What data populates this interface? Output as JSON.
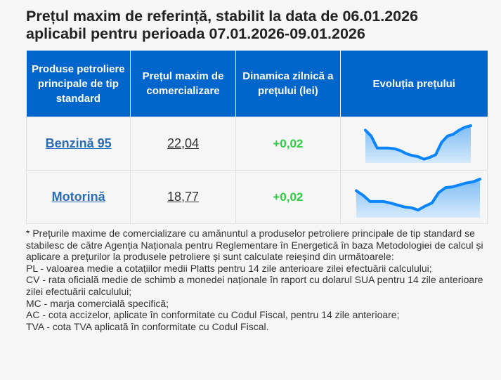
{
  "title_line1": "Prețul maxim de referință, stabilit la data de 06.01.2026",
  "title_line2": "aplicabil pentru perioada 07.01.2026-09.01.2026",
  "table": {
    "headers": [
      "Produse petroliere principale de tip standard",
      "Prețul maxim de comercializare",
      "Dinamica zilnică a prețului (lei)",
      "Evoluția prețului"
    ],
    "rows": [
      {
        "product": "Benzină 95",
        "price": "22,04",
        "dynamic": "+0,02"
      },
      {
        "product": "Motorină",
        "price": "18,77",
        "dynamic": "+0,02"
      }
    ]
  },
  "colors": {
    "header": "#0066cc",
    "link": "#2a6db5",
    "positive": "#2ecc40",
    "spark_line": "#0a84ff"
  },
  "chart_data": [
    {
      "type": "area",
      "values": [
        88,
        72,
        40,
        40,
        40,
        38,
        33,
        25,
        20,
        17,
        10,
        15,
        22,
        55,
        72,
        77,
        88,
        96,
        100
      ]
    },
    {
      "type": "area",
      "values": [
        70,
        58,
        42,
        42,
        42,
        38,
        33,
        28,
        26,
        20,
        30,
        38,
        65,
        78,
        80,
        85,
        90,
        93,
        100
      ]
    }
  ],
  "footnote": [
    "* Prețurile maxime de comercializare cu amănuntul a produselor petroliere principale de tip standard se stabilesc de către Agenția Naționala pentru Reglementare în Energetică în baza Metodologiei de calcul și aplicare a prețurilor la produsele petroliere și sunt calculate reieșind din următoarele:",
    "PL - valoarea medie a cotațiilor medii Platts pentru 14 zile anterioare zilei efectuării calculului;",
    "CV - rata oficială medie de schimb a monedei naționale în raport cu dolarul SUA pentru 14 zile anterioare zilei efectuării calculului;",
    "MC - marja comercială specifică;",
    "AC - cota accizelor, aplicate în conformitate cu Codul Fiscal, pentru 14 zile anterioare;",
    "TVA - cota TVA aplicată în conformitate cu Codul Fiscal."
  ]
}
